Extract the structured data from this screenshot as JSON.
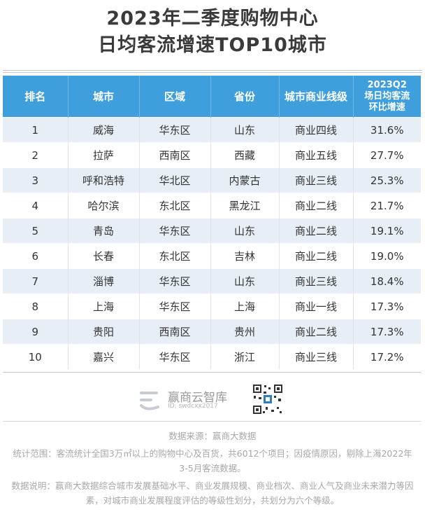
{
  "title": {
    "line1": "2023年二季度购物中心",
    "line2": "日均客流增速TOP10城市"
  },
  "table": {
    "headers": [
      "排名",
      "城市",
      "区域",
      "省份",
      "城市商业线级"
    ],
    "last_header": [
      "2023Q2",
      "场日均客流",
      "环比增速"
    ],
    "rows": [
      [
        "1",
        "威海",
        "华东区",
        "山东",
        "商业四线",
        "31.6%"
      ],
      [
        "2",
        "拉萨",
        "西南区",
        "西藏",
        "商业五线",
        "27.7%"
      ],
      [
        "3",
        "呼和浩特",
        "华北区",
        "内蒙古",
        "商业三线",
        "25.3%"
      ],
      [
        "4",
        "哈尔滨",
        "东北区",
        "黑龙江",
        "商业二线",
        "21.7%"
      ],
      [
        "5",
        "青岛",
        "华东区",
        "山东",
        "商业二线",
        "19.1%"
      ],
      [
        "6",
        "长春",
        "东北区",
        "吉林",
        "商业二线",
        "19.0%"
      ],
      [
        "7",
        "淄博",
        "华东区",
        "山东",
        "商业三线",
        "18.4%"
      ],
      [
        "8",
        "上海",
        "华东区",
        "上海",
        "商业一线",
        "17.3%"
      ],
      [
        "9",
        "贵阳",
        "西南区",
        "贵州",
        "商业二线",
        "17.3%"
      ],
      [
        "10",
        "嘉兴",
        "华东区",
        "浙江",
        "商业三线",
        "17.2%"
      ]
    ]
  },
  "brand": {
    "name": "赢商云智库",
    "id": "ID: swdcxx2017",
    "watermark": "赢商云智库"
  },
  "notes": {
    "source": "数据来源：赢商大数据",
    "scope": "统计范围：客流统计全国3万㎡以上的购物中心及百货，共6012个项目；因疫情原因，剔除上海2022年3-5月客流数据。",
    "explain": "数据说明：赢商大数据综合城市发展基础水平、商业发展规模、商业档次、商业人气及商业未来潜力等因素，对城市商业发展程度评估的等级性划分，共划分为六个等级。"
  },
  "colors": {
    "header_bg": "#3f9fdd",
    "stripe_bg": "#e8eef5",
    "title_text": "#3a3a3a",
    "note_text": "#a8a8a8"
  }
}
